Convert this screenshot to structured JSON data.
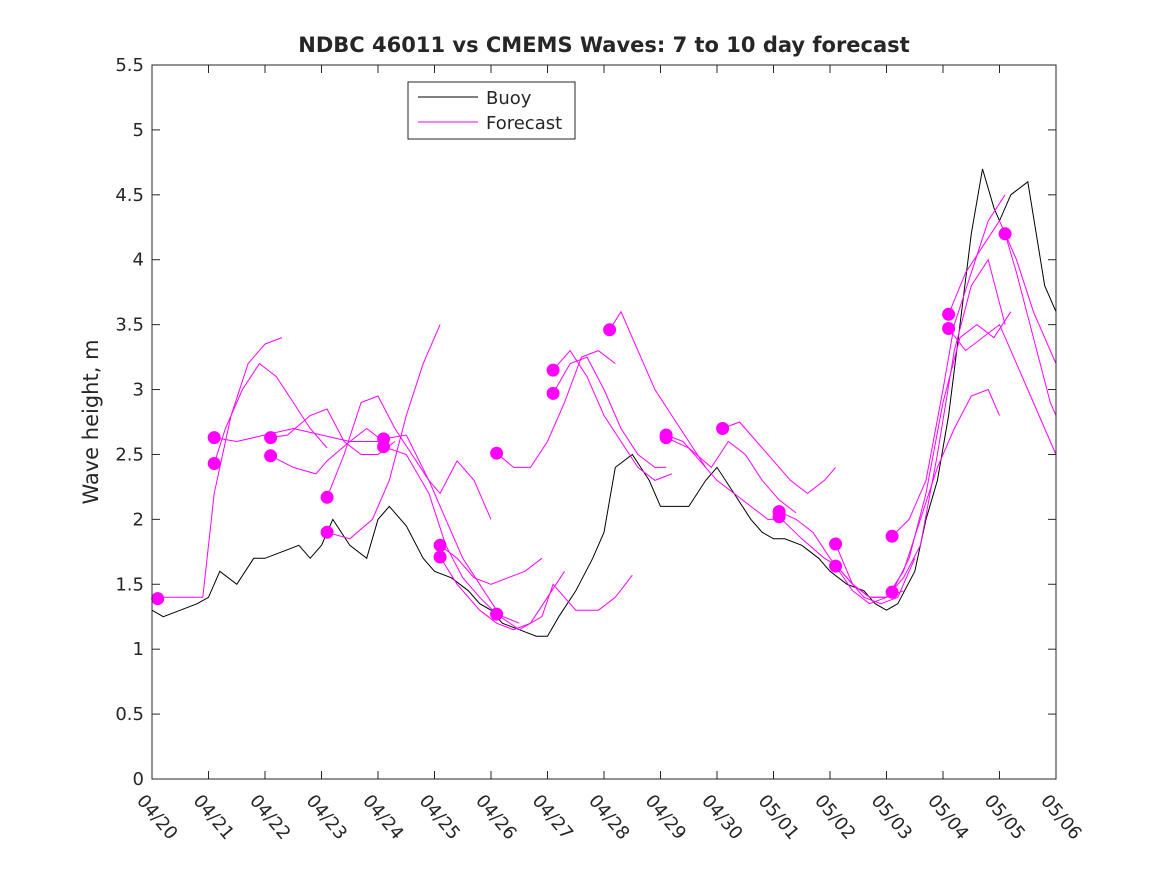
{
  "chart_data": {
    "type": "line",
    "title": "NDBC 46011 vs CMEMS Waves: 7 to 10 day forecast",
    "xlabel": "",
    "ylabel": "Wave height, m",
    "ylim": [
      0,
      5.5
    ],
    "xlim": [
      "04/20",
      "05/06"
    ],
    "x_ticks": [
      "04/20",
      "04/21",
      "04/22",
      "04/23",
      "04/24",
      "04/25",
      "04/26",
      "04/27",
      "04/28",
      "04/29",
      "04/30",
      "05/01",
      "05/02",
      "05/03",
      "05/04",
      "05/05",
      "05/06"
    ],
    "y_ticks": [
      "0",
      "0.5",
      "1",
      "1.5",
      "2",
      "2.5",
      "3",
      "3.5",
      "4",
      "4.5",
      "5",
      "5.5"
    ],
    "legend_position": "top-left",
    "grid": false,
    "colors": {
      "buoy": "#000000",
      "forecast": "#ff00ff",
      "axes": "#262626"
    },
    "x_units_note": "x values are days from 04/20",
    "series": [
      {
        "name": "Buoy",
        "color": "#000000",
        "x": [
          0,
          0.2,
          0.5,
          0.8,
          1.0,
          1.2,
          1.5,
          1.8,
          2.0,
          2.3,
          2.6,
          2.8,
          3.0,
          3.2,
          3.5,
          3.8,
          4.0,
          4.2,
          4.5,
          4.8,
          5.0,
          5.3,
          5.6,
          5.8,
          6.0,
          6.2,
          6.5,
          6.8,
          7.0,
          7.2,
          7.5,
          7.8,
          8.0,
          8.2,
          8.5,
          8.8,
          9.0,
          9.2,
          9.5,
          9.8,
          10.0,
          10.3,
          10.6,
          10.8,
          11.0,
          11.2,
          11.5,
          11.8,
          12.0,
          12.3,
          12.6,
          12.8,
          13.0,
          13.2,
          13.5,
          13.7,
          13.9,
          14.1,
          14.3,
          14.5,
          14.7,
          14.9,
          15.0,
          15.2,
          15.5,
          15.8,
          16.0
        ],
        "y": [
          1.3,
          1.25,
          1.3,
          1.35,
          1.4,
          1.6,
          1.5,
          1.7,
          1.7,
          1.75,
          1.8,
          1.7,
          1.8,
          2.0,
          1.8,
          1.7,
          2.0,
          2.1,
          1.95,
          1.7,
          1.6,
          1.55,
          1.45,
          1.35,
          1.3,
          1.2,
          1.15,
          1.1,
          1.1,
          1.25,
          1.45,
          1.7,
          1.9,
          2.4,
          2.5,
          2.3,
          2.1,
          2.1,
          2.1,
          2.3,
          2.4,
          2.2,
          2.0,
          1.9,
          1.85,
          1.85,
          1.8,
          1.7,
          1.6,
          1.5,
          1.45,
          1.35,
          1.3,
          1.35,
          1.6,
          2.0,
          2.3,
          2.8,
          3.5,
          4.2,
          4.7,
          4.4,
          4.3,
          4.5,
          4.6,
          3.8,
          3.6
        ]
      },
      {
        "name": "Forecast",
        "color": "#ff00ff",
        "segments": [
          {
            "x": [
              0.1,
              0.5,
              0.9,
              1.1,
              1.4,
              1.7,
              2.0,
              2.3
            ],
            "y": [
              1.4,
              1.4,
              1.4,
              2.2,
              2.8,
              3.2,
              3.35,
              3.4
            ]
          },
          {
            "x": [
              1.1,
              1.3,
              1.6,
              1.9,
              2.2,
              2.5,
              2.8,
              3.1
            ],
            "y": [
              2.43,
              2.7,
              3.0,
              3.2,
              3.1,
              2.9,
              2.7,
              2.55
            ]
          },
          {
            "x": [
              1.1,
              1.5,
              2.0,
              2.5,
              3.0,
              3.5,
              4.0
            ],
            "y": [
              2.63,
              2.6,
              2.65,
              2.7,
              2.65,
              2.6,
              2.6
            ]
          },
          {
            "x": [
              2.1,
              2.4,
              2.8,
              3.1,
              3.4,
              3.7,
              4.0,
              4.3
            ],
            "y": [
              2.63,
              2.65,
              2.8,
              2.85,
              2.6,
              2.5,
              2.5,
              2.6
            ]
          },
          {
            "x": [
              2.1,
              2.5,
              2.9,
              3.1,
              3.5,
              3.8,
              4.1
            ],
            "y": [
              2.49,
              2.4,
              2.35,
              2.45,
              2.6,
              2.7,
              2.6
            ]
          },
          {
            "x": [
              3.1,
              3.4,
              3.7,
              4.0,
              4.3,
              4.6,
              4.9,
              5.1,
              5.4,
              5.7,
              6.0
            ],
            "y": [
              2.17,
              2.5,
              2.9,
              2.95,
              2.7,
              2.5,
              2.3,
              2.2,
              2.45,
              2.3,
              2.0
            ]
          },
          {
            "x": [
              3.1,
              3.5,
              3.9,
              4.2,
              4.5,
              4.8,
              5.1
            ],
            "y": [
              1.9,
              1.85,
              2.0,
              2.3,
              2.8,
              3.2,
              3.5
            ]
          },
          {
            "x": [
              4.1,
              4.5,
              4.9,
              5.2,
              5.5,
              5.8,
              6.1
            ],
            "y": [
              2.62,
              2.65,
              2.3,
              2.0,
              1.7,
              1.5,
              1.3
            ]
          },
          {
            "x": [
              4.1,
              4.5,
              4.9,
              5.2,
              5.5,
              5.8,
              6.1,
              6.5
            ],
            "y": [
              2.56,
              2.5,
              2.2,
              1.8,
              1.55,
              1.4,
              1.27,
              1.2
            ]
          },
          {
            "x": [
              5.1,
              5.4,
              5.7,
              6.0,
              6.3,
              6.6,
              6.9
            ],
            "y": [
              1.8,
              1.7,
              1.55,
              1.5,
              1.55,
              1.6,
              1.7
            ]
          },
          {
            "x": [
              5.1,
              5.4,
              5.8,
              6.1,
              6.4,
              6.7,
              7.0,
              7.3
            ],
            "y": [
              1.71,
              1.5,
              1.3,
              1.2,
              1.15,
              1.2,
              1.4,
              1.6
            ]
          },
          {
            "x": [
              6.1,
              6.4,
              6.7,
              7.0,
              7.3,
              7.6,
              7.9,
              8.2
            ],
            "y": [
              2.51,
              2.4,
              2.4,
              2.6,
              2.9,
              3.25,
              3.3,
              3.2
            ]
          },
          {
            "x": [
              6.1,
              6.5,
              6.9,
              7.1,
              7.5,
              7.9,
              8.2,
              8.5
            ],
            "y": [
              1.27,
              1.15,
              1.25,
              1.5,
              1.3,
              1.3,
              1.4,
              1.57
            ]
          },
          {
            "x": [
              7.1,
              7.4,
              7.7,
              8.0,
              8.3,
              8.6,
              8.9,
              9.2
            ],
            "y": [
              3.15,
              3.3,
              3.1,
              2.8,
              2.6,
              2.4,
              2.3,
              2.35
            ]
          },
          {
            "x": [
              7.1,
              7.4,
              7.7,
              8.0,
              8.3,
              8.6,
              8.9,
              9.1
            ],
            "y": [
              2.97,
              3.2,
              3.25,
              3.0,
              2.7,
              2.5,
              2.4,
              2.4
            ]
          },
          {
            "x": [
              8.1,
              8.3,
              8.6,
              8.9,
              9.2,
              9.5,
              9.8
            ],
            "y": [
              3.46,
              3.6,
              3.3,
              3.0,
              2.8,
              2.6,
              2.4
            ]
          },
          {
            "x": [
              9.1,
              9.4,
              9.7,
              10.0,
              10.3,
              10.6,
              10.9,
              11.2
            ],
            "y": [
              2.65,
              2.6,
              2.45,
              2.3,
              2.2,
              2.1,
              2.0,
              2.0
            ]
          },
          {
            "x": [
              9.1,
              9.5,
              9.9,
              10.2,
              10.5,
              10.8,
              11.1,
              11.4
            ],
            "y": [
              2.63,
              2.55,
              2.4,
              2.6,
              2.5,
              2.3,
              2.15,
              2.05
            ]
          },
          {
            "x": [
              10.1,
              10.4,
              10.7,
              11.0,
              11.3,
              11.6,
              11.9,
              12.1
            ],
            "y": [
              2.7,
              2.75,
              2.6,
              2.45,
              2.3,
              2.2,
              2.3,
              2.4
            ]
          },
          {
            "x": [
              11.1,
              11.4,
              11.7,
              12.0,
              12.3,
              12.6,
              12.9,
              13.2,
              13.5
            ],
            "y": [
              2.06,
              2.0,
              1.9,
              1.7,
              1.55,
              1.4,
              1.35,
              1.4,
              1.7
            ]
          },
          {
            "x": [
              11.1,
              11.5,
              11.9,
              12.1,
              12.4,
              12.7,
              13.0,
              13.3
            ],
            "y": [
              2.02,
              1.85,
              1.7,
              1.65,
              1.5,
              1.4,
              1.4,
              1.45
            ]
          },
          {
            "x": [
              12.1,
              12.4,
              12.7,
              13.0,
              13.3,
              13.6,
              13.9,
              14.2,
              14.5,
              14.8,
              15.0
            ],
            "y": [
              1.81,
              1.5,
              1.4,
              1.4,
              1.6,
              2.0,
              2.4,
              2.7,
              2.95,
              3.0,
              2.8
            ]
          },
          {
            "x": [
              12.1,
              12.4,
              12.7,
              13.0,
              13.3,
              13.6,
              13.9,
              14.2,
              14.5,
              14.8,
              15.1
            ],
            "y": [
              1.64,
              1.45,
              1.35,
              1.4,
              1.55,
              1.8,
              2.5,
              3.3,
              3.8,
              4.0,
              3.5
            ]
          },
          {
            "x": [
              13.1,
              13.4,
              13.7,
              14.0,
              14.2,
              14.5,
              14.8,
              15.1
            ],
            "y": [
              1.87,
              2.0,
              2.3,
              3.0,
              3.5,
              3.9,
              4.3,
              4.5
            ]
          },
          {
            "x": [
              13.1,
              13.4,
              13.7,
              14.0,
              14.3,
              14.6,
              14.9,
              15.2
            ],
            "y": [
              1.44,
              1.7,
              2.2,
              2.9,
              3.4,
              3.5,
              3.4,
              3.6
            ]
          },
          {
            "x": [
              14.1,
              14.4,
              14.7,
              15.0,
              15.3,
              15.6,
              15.9,
              16.0
            ],
            "y": [
              3.58,
              3.9,
              4.1,
              4.3,
              4.0,
              3.6,
              3.3,
              3.2
            ]
          },
          {
            "x": [
              14.1,
              14.4,
              14.7,
              15.0,
              15.3,
              15.6,
              15.9,
              16.0
            ],
            "y": [
              3.47,
              3.3,
              3.4,
              3.5,
              3.2,
              2.9,
              2.6,
              2.5
            ]
          },
          {
            "x": [
              15.1,
              15.3,
              15.6,
              15.9,
              16.0
            ],
            "y": [
              4.2,
              3.9,
              3.4,
              2.9,
              2.8
            ]
          }
        ],
        "markers": {
          "x": [
            0.1,
            1.1,
            1.1,
            2.1,
            2.1,
            3.1,
            3.1,
            4.1,
            4.1,
            5.1,
            5.1,
            6.1,
            6.1,
            7.1,
            7.1,
            8.1,
            9.1,
            9.1,
            10.1,
            11.1,
            11.1,
            12.1,
            12.1,
            13.1,
            13.1,
            14.1,
            14.1,
            15.1
          ],
          "y": [
            1.39,
            2.63,
            2.43,
            2.63,
            2.49,
            2.17,
            1.9,
            2.62,
            2.56,
            1.8,
            1.71,
            2.51,
            1.27,
            3.15,
            2.97,
            3.46,
            2.65,
            2.63,
            2.7,
            2.06,
            2.02,
            1.81,
            1.64,
            1.87,
            1.44,
            3.58,
            3.47,
            4.2
          ]
        }
      }
    ]
  }
}
